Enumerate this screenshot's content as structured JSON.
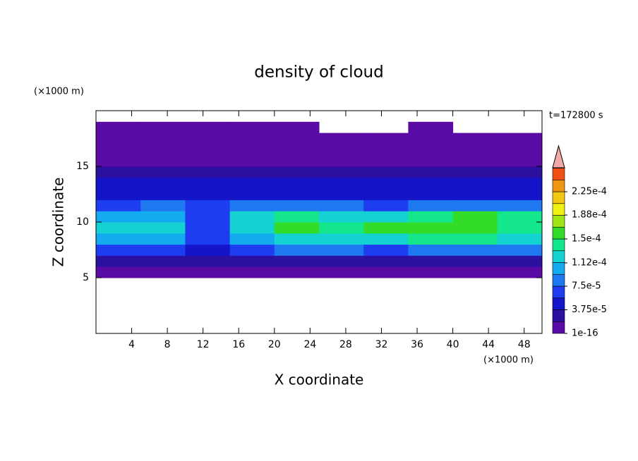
{
  "chart_data": {
    "type": "contour",
    "title": "density of cloud",
    "x_label": "X coordinate",
    "y_label": "Z coordinate",
    "x_unit": "(×1000 m)",
    "y_unit": "(×1000 m)",
    "time_label": "t=172800 s",
    "xlim": [
      0,
      50
    ],
    "ylim": [
      0,
      20
    ],
    "xticks": [
      4,
      8,
      12,
      16,
      20,
      24,
      28,
      32,
      36,
      40,
      44,
      48
    ],
    "yticks": [
      5,
      10,
      15
    ],
    "x_edges": [
      0,
      5,
      10,
      15,
      20,
      25,
      30,
      35,
      40,
      45,
      50
    ],
    "z_edges": [
      5,
      6,
      7,
      8,
      9,
      10,
      11,
      12,
      13,
      14,
      15,
      16,
      17,
      18,
      19
    ],
    "values": [
      [
        1.5e-05,
        1.5e-05,
        1.5e-05,
        1.5e-05,
        1.5e-05,
        1.5e-05,
        1.5e-05,
        1.5e-05,
        1.5e-05,
        1.5e-05
      ],
      [
        3e-05,
        3e-05,
        2.5e-05,
        3e-05,
        3.2e-05,
        3e-05,
        3e-05,
        3.2e-05,
        3.2e-05,
        3e-05
      ],
      [
        7e-05,
        6.5e-05,
        5e-05,
        7e-05,
        8e-05,
        7.5e-05,
        7e-05,
        8e-05,
        8.5e-05,
        8e-05
      ],
      [
        0.00011,
        0.000105,
        7e-05,
        0.00011,
        0.000125,
        0.000115,
        0.00013,
        0.000135,
        0.000135,
        0.000125
      ],
      [
        0.000125,
        0.00013,
        6e-05,
        0.00012,
        0.00015,
        0.000145,
        0.00016,
        0.000155,
        0.00016,
        0.000145
      ],
      [
        0.0001,
        0.00011,
        7e-05,
        0.000115,
        0.000135,
        0.00012,
        0.00013,
        0.00014,
        0.00016,
        0.00014
      ],
      [
        7e-05,
        7.5e-05,
        6e-05,
        8e-05,
        9e-05,
        7.5e-05,
        7e-05,
        8.5e-05,
        9e-05,
        8e-05
      ],
      [
        5e-05,
        5e-05,
        4.5e-05,
        5e-05,
        5.5e-05,
        5e-05,
        4.5e-05,
        5e-05,
        5.5e-05,
        5e-05
      ],
      [
        4e-05,
        4e-05,
        4e-05,
        4e-05,
        4e-05,
        4e-05,
        4e-05,
        4e-05,
        4e-05,
        4e-05
      ],
      [
        2.5e-05,
        2.5e-05,
        2.5e-05,
        2.5e-05,
        2.5e-05,
        2.5e-05,
        2.5e-05,
        2.5e-05,
        2.5e-05,
        2.5e-05
      ],
      [
        1.5e-05,
        1e-05,
        1e-05,
        1e-05,
        1e-05,
        1e-05,
        1e-05,
        1e-05,
        1e-05,
        1e-05
      ],
      [
        1e-05,
        1e-05,
        1e-05,
        1e-05,
        1e-05,
        1e-05,
        1e-05,
        1e-05,
        1e-05,
        1e-05
      ],
      [
        5e-06,
        5e-06,
        5e-06,
        5e-06,
        5e-06,
        5e-06,
        5e-06,
        5e-06,
        5e-06,
        5e-06
      ],
      [
        3e-06,
        3e-06,
        3e-06,
        3e-06,
        3e-06,
        null,
        null,
        3e-06,
        null,
        null
      ]
    ],
    "levels": [
      1e-16,
      1.875e-05,
      3.75e-05,
      5.625e-05,
      7.5e-05,
      9.375e-05,
      0.0001125,
      0.00013125,
      0.00015,
      0.00016875,
      0.0001875,
      0.00020625,
      0.000225,
      0.00024375,
      0.0002625
    ],
    "colors": [
      "#5a0aa5",
      "#2c10a0",
      "#1414c8",
      "#1e3cf0",
      "#1e78f0",
      "#14aaf0",
      "#14d2d2",
      "#14e68c",
      "#32dc28",
      "#a0e614",
      "#f0f014",
      "#f0c814",
      "#f09614",
      "#f05014"
    ],
    "colorbar_ticks": [
      1e-16,
      {
        "value": 3.75e-05,
        "label": "3.75e-5"
      },
      {
        "value": 7.5e-05,
        "label": "7.5e-5"
      },
      {
        "value": 0.000112,
        "label": "1.12e-4"
      },
      {
        "value": 0.00015,
        "label": "1.5e-4"
      },
      {
        "value": 0.000188,
        "label": "1.88e-4"
      },
      {
        "value": 0.000225,
        "label": "2.25e-4"
      }
    ]
  }
}
